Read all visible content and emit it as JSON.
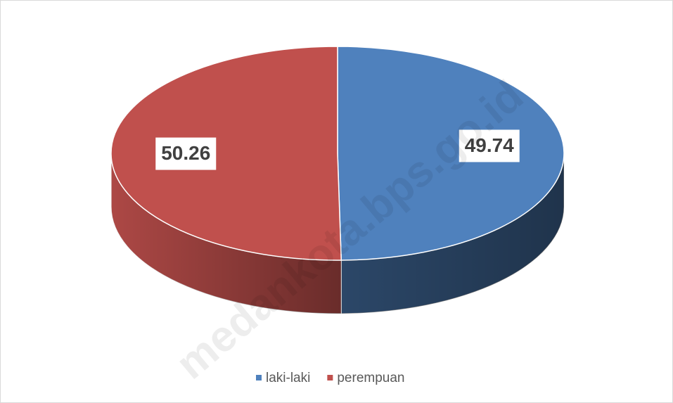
{
  "chart_data": {
    "type": "pie3d",
    "categories": [
      "laki-laki",
      "perempuan"
    ],
    "values": [
      49.74,
      50.26
    ],
    "colors": [
      "#4f81bd",
      "#c0504d"
    ],
    "watermark": "medankota.bps.go.id",
    "legend": "bottom"
  }
}
